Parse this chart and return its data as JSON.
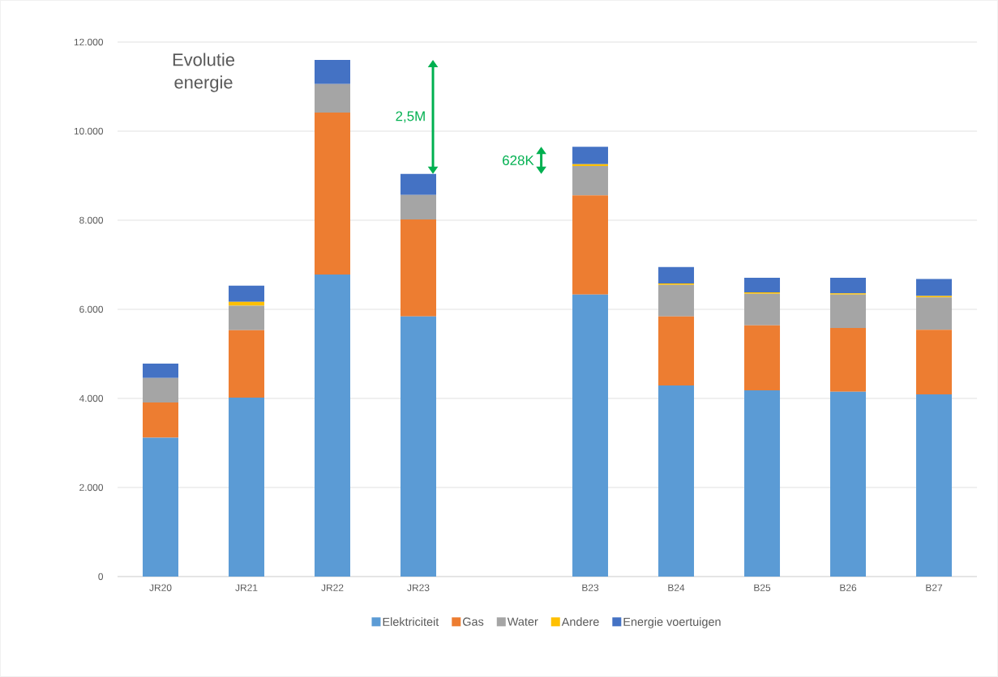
{
  "chart_data": {
    "type": "bar",
    "stacked": true,
    "title": "Evolutie energie",
    "categories": [
      "JR20",
      "JR21",
      "JR22",
      "JR23",
      null,
      "B23",
      "B24",
      "B25",
      "B26",
      "B27"
    ],
    "series": [
      {
        "name": "Elektriciteit",
        "color": "#5b9bd5",
        "values": [
          3120,
          4020,
          6780,
          5840,
          null,
          6330,
          4290,
          4180,
          4150,
          4090
        ]
      },
      {
        "name": "Gas",
        "color": "#ed7d31",
        "values": [
          790,
          1510,
          3640,
          2180,
          null,
          2230,
          1550,
          1460,
          1430,
          1450
        ]
      },
      {
        "name": "Water",
        "color": "#a5a5a5",
        "values": [
          550,
          550,
          640,
          550,
          null,
          660,
          710,
          710,
          750,
          730
        ]
      },
      {
        "name": "Andere",
        "color": "#ffc000",
        "values": [
          0,
          90,
          0,
          0,
          null,
          40,
          30,
          30,
          30,
          30
        ]
      },
      {
        "name": "Energie voertuigen",
        "color": "#4472c4",
        "values": [
          320,
          360,
          540,
          470,
          null,
          390,
          370,
          330,
          350,
          380
        ]
      }
    ],
    "ylim": [
      0,
      12000
    ],
    "yticks": [
      0,
      {
        "value": 2000,
        "label": "2.000"
      },
      {
        "value": 4000,
        "label": "4.000"
      },
      {
        "value": 6000,
        "label": "6.000"
      },
      {
        "value": 8000,
        "label": "8.000"
      },
      {
        "value": 10000,
        "label": "10.000"
      },
      {
        "value": 12000,
        "label": "12.000"
      }
    ],
    "grid": "y",
    "legend": "bottom",
    "annotations": [
      "2,5M",
      "628K"
    ]
  }
}
